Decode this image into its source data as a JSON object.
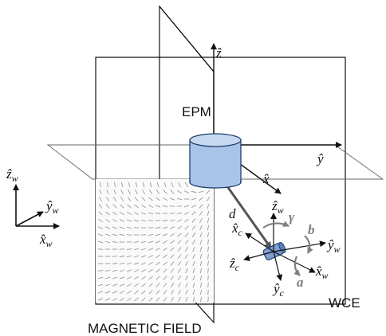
{
  "diagram": {
    "labels": {
      "epm": "EPM",
      "wce": "WCE",
      "magnetic_field": "MAGNETIC FIELD",
      "z": "ẑ",
      "y": "ŷ",
      "x": "x̂",
      "d": "d⃗",
      "zw": "ẑ",
      "yw": "ŷ",
      "xw": "x̂",
      "zc": "ẑ",
      "xc": "x̂",
      "yc": "ŷ",
      "sub_w": "w",
      "sub_c": "c",
      "gamma": "γ",
      "b": "b",
      "a": "a"
    },
    "legend_axes": {
      "z": "ẑ",
      "y": "ŷ",
      "x": "x̂",
      "sub": "w"
    },
    "colors": {
      "line": "#111111",
      "plane_line": "#555555",
      "magnet_fill": "#a9c4e6",
      "magnet_stroke": "#1f3f6e",
      "rotation_arrow": "#7f7f7f",
      "field_lines": "#999999"
    }
  }
}
